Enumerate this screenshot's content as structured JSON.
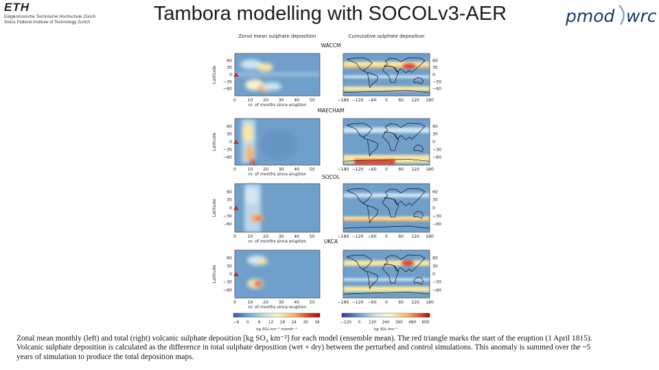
{
  "header": {
    "eth_mark": "ETH",
    "eth_line1": "Eidgenössische Technische Hochschule Zürich",
    "eth_line2": "Swiss Federal Institute of Technology Zurich",
    "title": "Tambora modelling with SOCOLv3-AER",
    "pmod_logo": "pmod",
    "wrc_logo": "wrc"
  },
  "figure": {
    "left_panel_title": "Zonal mean sulphate deposition",
    "right_panel_title": "Cumulative sulphate deposition",
    "lat_axis_label": "Latitude",
    "x_axis_label": "nr. of months since eruption",
    "lat_ticks": [
      "60",
      "30",
      "0",
      "−30",
      "−60"
    ],
    "month_ticks": [
      "0",
      "10",
      "20",
      "30",
      "40",
      "50"
    ],
    "lon_ticks": [
      "−180",
      "−120",
      "−60",
      "0",
      "60",
      "120",
      "180"
    ],
    "models": [
      "WACCM",
      "MAECHAM",
      "SOCOL",
      "UKCA"
    ],
    "left_colorbar_ticks": [
      "−6",
      "0",
      "6",
      "12",
      "18",
      "24",
      "30",
      "36"
    ],
    "left_colorbar_label": "kg SO₄ km⁻² month⁻¹",
    "right_colorbar_ticks": [
      "−120",
      "0",
      "120",
      "240",
      "360",
      "480",
      "600"
    ],
    "right_colorbar_label": "kg SO₄ km⁻²",
    "colors": {
      "background_field": "#6f9fca",
      "high_band": "#f7e6a4",
      "peak": "#e8462f",
      "coast": "#111111",
      "marker": "#c0262a"
    }
  },
  "caption": {
    "line1": "Zonal mean monthly (left) and total (right) volcanic sulphate deposition [kg SO₄ km⁻²] for each model (ensemble mean). The red triangle marks the start of the eruption (1 April 1815).",
    "line2": "Volcanic sulphate deposition is calculated as the difference in total sulphate deposition (wet + dry) between the perturbed and control simulations. This anomaly is summed over the ~5",
    "line3": "years of simulation to produce the total deposition maps."
  }
}
